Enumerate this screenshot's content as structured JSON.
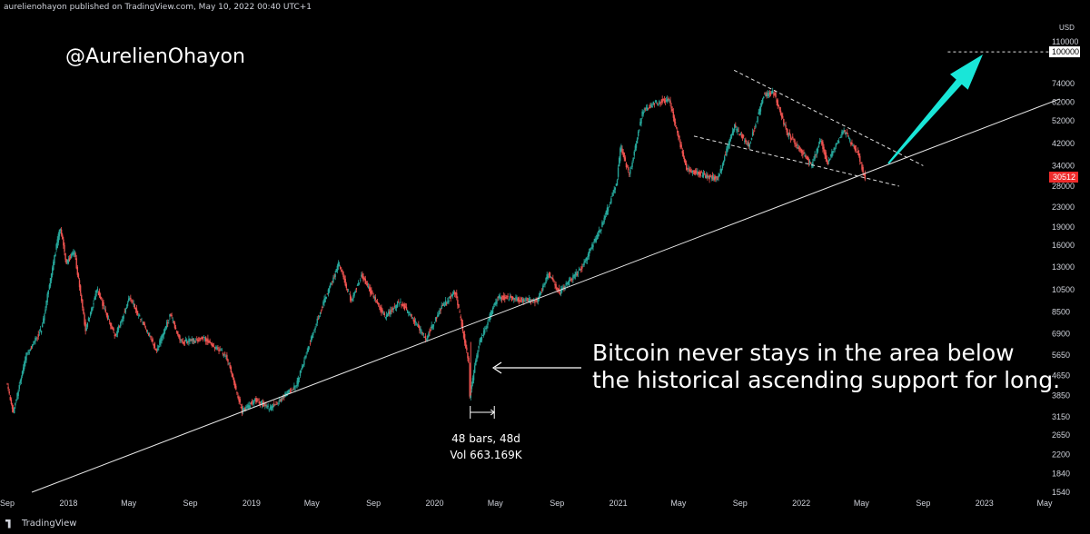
{
  "header": {
    "published_text": "aurelienohayon published on TradingView.com, May 10, 2022 00:40 UTC+1"
  },
  "watermark": {
    "handle": "@AurelienOhayon"
  },
  "annotation": {
    "line1": "Bitcoin never stays in the area below",
    "line2": "the historical ascending support for long."
  },
  "measure_tool": {
    "bars_text": "48 bars, 48d",
    "volume_text": "Vol 663.169K"
  },
  "footer": {
    "brand": "TradingView"
  },
  "colors": {
    "up": "#26a69a",
    "down": "#ef5350",
    "arrow": "#19e6d8",
    "support_line": "#e6e6e6",
    "background": "#000000",
    "price_label_bg": "#ef2b2b",
    "target_label_bg": "#ffffff"
  },
  "chart_data": {
    "type": "candlestick",
    "scale": "log",
    "currency_label": "USD",
    "y_ticks": [
      110000,
      74000,
      62000,
      52000,
      42000,
      34000,
      28000,
      23000,
      19000,
      16000,
      13000,
      10500,
      8500,
      6900,
      5650,
      4650,
      3850,
      3150,
      2650,
      2200,
      1840,
      1540
    ],
    "x_ticks": [
      "Sep",
      "2018",
      "May",
      "Sep",
      "2019",
      "May",
      "Sep",
      "2020",
      "May",
      "Sep",
      "2021",
      "May",
      "Sep",
      "2022",
      "May",
      "Sep",
      "2023",
      "May"
    ],
    "x_tick_dates": [
      "2017-09-01",
      "2018-01-01",
      "2018-05-01",
      "2018-09-01",
      "2019-01-01",
      "2019-05-01",
      "2019-09-01",
      "2020-01-01",
      "2020-05-01",
      "2020-09-01",
      "2021-01-01",
      "2021-05-01",
      "2021-09-01",
      "2022-01-01",
      "2022-05-01",
      "2022-09-01",
      "2023-01-01",
      "2023-05-01"
    ],
    "path": [
      [
        "2017-09-01",
        4400
      ],
      [
        "2017-09-15",
        3300
      ],
      [
        "2017-10-10",
        5600
      ],
      [
        "2017-11-10",
        7200
      ],
      [
        "2017-12-17",
        19000
      ],
      [
        "2017-12-30",
        13500
      ],
      [
        "2018-01-15",
        15000
      ],
      [
        "2018-02-06",
        7200
      ],
      [
        "2018-03-01",
        10500
      ],
      [
        "2018-04-06",
        6700
      ],
      [
        "2018-05-05",
        9800
      ],
      [
        "2018-06-28",
        5900
      ],
      [
        "2018-07-25",
        8300
      ],
      [
        "2018-08-15",
        6400
      ],
      [
        "2018-10-01",
        6600
      ],
      [
        "2018-11-14",
        5600
      ],
      [
        "2018-12-15",
        3300
      ],
      [
        "2019-01-10",
        3700
      ],
      [
        "2019-02-08",
        3400
      ],
      [
        "2019-04-01",
        4200
      ],
      [
        "2019-05-15",
        8000
      ],
      [
        "2019-06-26",
        13500
      ],
      [
        "2019-07-20",
        9500
      ],
      [
        "2019-08-10",
        12000
      ],
      [
        "2019-09-26",
        8100
      ],
      [
        "2019-10-26",
        9400
      ],
      [
        "2019-12-17",
        6600
      ],
      [
        "2020-01-15",
        8800
      ],
      [
        "2020-02-13",
        10300
      ],
      [
        "2020-03-12",
        5200
      ],
      [
        "2020-03-13",
        3850
      ],
      [
        "2020-04-01",
        6400
      ],
      [
        "2020-05-08",
        9800
      ],
      [
        "2020-07-25",
        9400
      ],
      [
        "2020-08-17",
        12300
      ],
      [
        "2020-09-08",
        10200
      ],
      [
        "2020-10-21",
        12800
      ],
      [
        "2020-11-30",
        19000
      ],
      [
        "2020-12-31",
        29000
      ],
      [
        "2021-01-08",
        41000
      ],
      [
        "2021-01-25",
        31000
      ],
      [
        "2021-02-21",
        57000
      ],
      [
        "2021-03-13",
        61000
      ],
      [
        "2021-04-14",
        64000
      ],
      [
        "2021-05-19",
        33000
      ],
      [
        "2021-06-22",
        31000
      ],
      [
        "2021-07-20",
        30000
      ],
      [
        "2021-08-22",
        49500
      ],
      [
        "2021-09-21",
        41000
      ],
      [
        "2021-10-20",
        66000
      ],
      [
        "2021-11-10",
        68000
      ],
      [
        "2021-12-04",
        47000
      ],
      [
        "2022-01-24",
        34000
      ],
      [
        "2022-02-10",
        44000
      ],
      [
        "2022-02-24",
        35000
      ],
      [
        "2022-03-28",
        47500
      ],
      [
        "2022-04-25",
        38500
      ],
      [
        "2022-05-09",
        30512
      ]
    ],
    "last_price": 30512,
    "last_price_label": "30512",
    "target_price": 100000,
    "target_label": "100000",
    "support_line": {
      "from": [
        "2017-10-20",
        1540
      ],
      "to": [
        "2023-05-31",
        64000
      ]
    },
    "wedge_upper": {
      "from": [
        "2021-08-20",
        84000
      ],
      "to": [
        "2022-09-01",
        34000
      ]
    },
    "wedge_lower": {
      "from": [
        "2021-06-01",
        45000
      ],
      "to": [
        "2022-07-15",
        28000
      ]
    },
    "target_dashed": {
      "from": [
        "2022-10-20",
        100000
      ],
      "to": [
        "2023-06-15",
        100000
      ]
    },
    "measure_range": {
      "from": "2020-03-12",
      "to": "2020-04-29",
      "bars": 48
    }
  }
}
